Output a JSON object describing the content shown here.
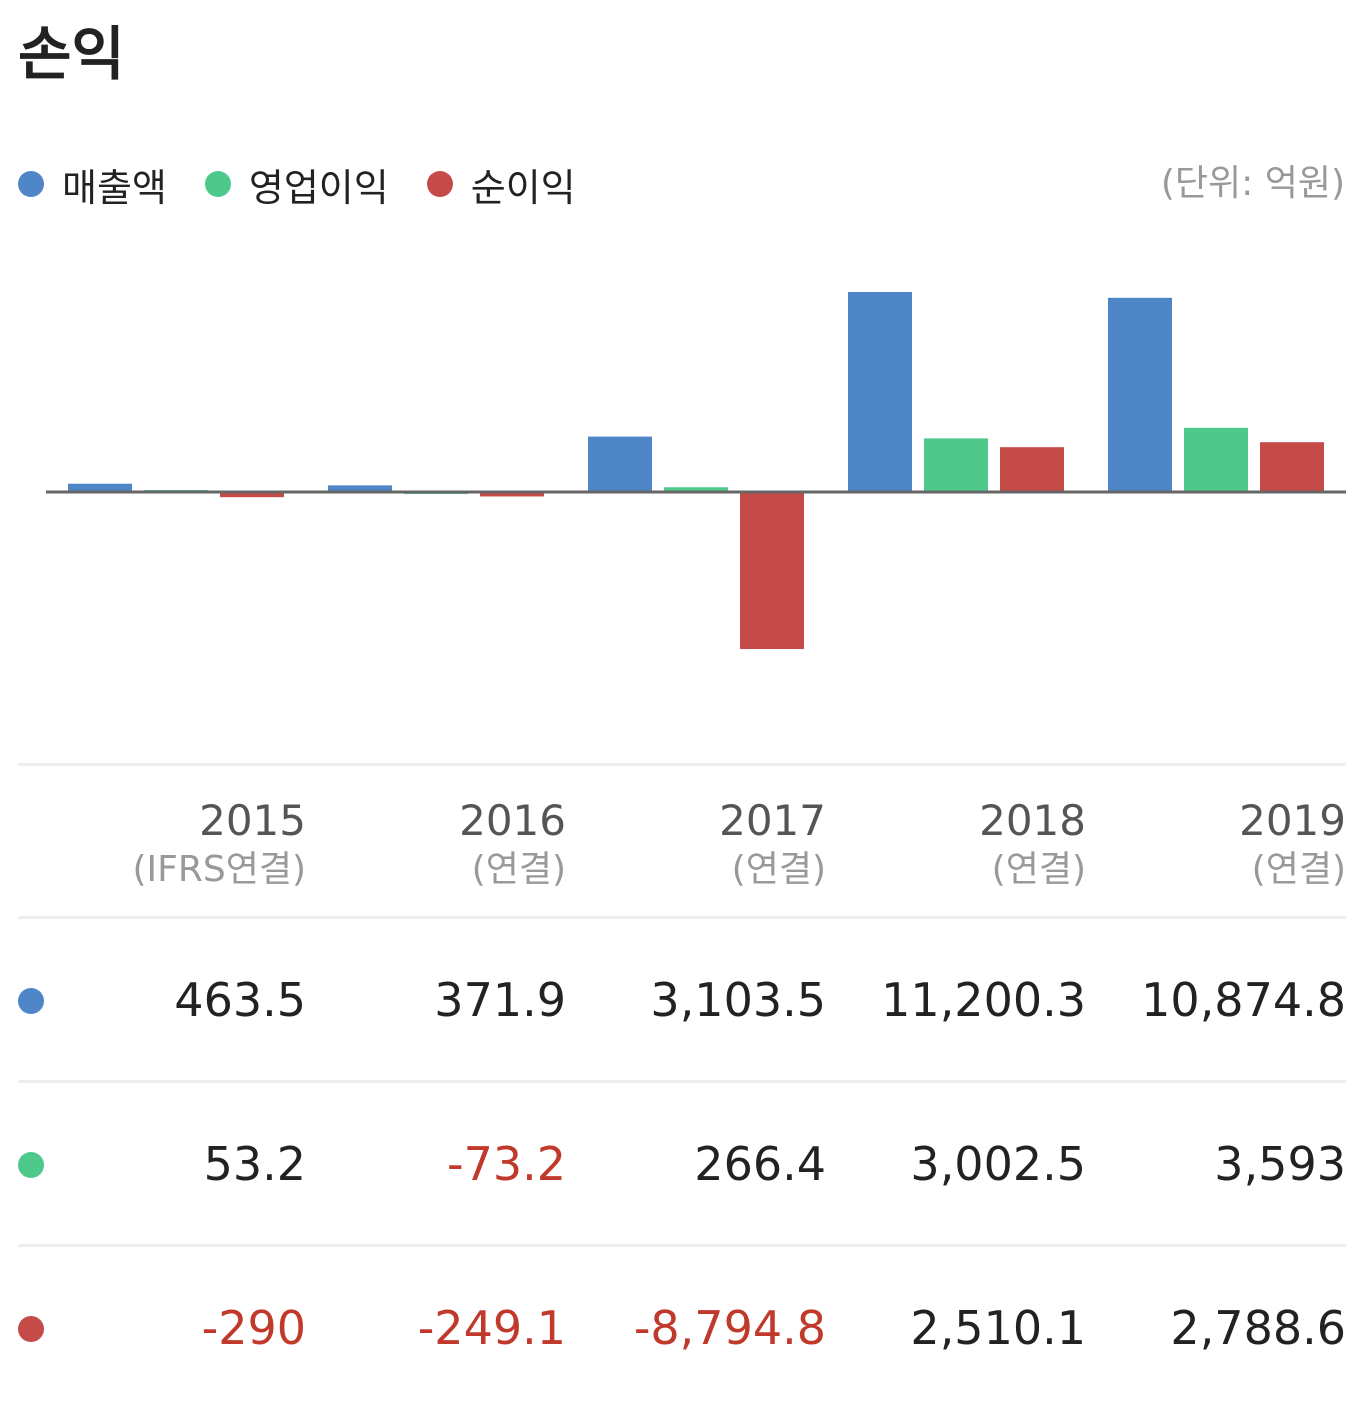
{
  "header": {
    "title": "손익",
    "unit": "(단위: 억원)"
  },
  "legend": [
    {
      "label": "매출액",
      "color": "#4e86c8"
    },
    {
      "label": "영업이익",
      "color": "#4ec98b"
    },
    {
      "label": "순이익",
      "color": "#c44b47"
    }
  ],
  "years": [
    {
      "year": "2015",
      "sub": "(IFRS연결)"
    },
    {
      "year": "2016",
      "sub": "(연결)"
    },
    {
      "year": "2017",
      "sub": "(연결)"
    },
    {
      "year": "2018",
      "sub": "(연결)"
    },
    {
      "year": "2019",
      "sub": "(연결)"
    }
  ],
  "table": {
    "rows": [
      {
        "values": [
          "463.5",
          "371.9",
          "3,103.5",
          "11,200.3",
          "10,874.8"
        ]
      },
      {
        "values": [
          "53.2",
          "-73.2",
          "266.4",
          "3,002.5",
          "3,593"
        ]
      },
      {
        "values": [
          "-290",
          "-249.1",
          "-8,794.8",
          "2,510.1",
          "2,788.6"
        ]
      }
    ]
  },
  "chart_data": {
    "type": "bar",
    "categories": [
      "2015",
      "2016",
      "2017",
      "2018",
      "2019"
    ],
    "series": [
      {
        "name": "매출액",
        "values": [
          463.5,
          371.9,
          3103.5,
          11200.3,
          10874.8
        ]
      },
      {
        "name": "영업이익",
        "values": [
          53.2,
          -73.2,
          266.4,
          3002.5,
          3593
        ]
      },
      {
        "name": "순이익",
        "values": [
          -290,
          -249.1,
          -8794.8,
          2510.1,
          2788.6
        ]
      }
    ],
    "ylim": [
      -15000,
      12500
    ],
    "grid": false,
    "legend_position": "top-left"
  }
}
